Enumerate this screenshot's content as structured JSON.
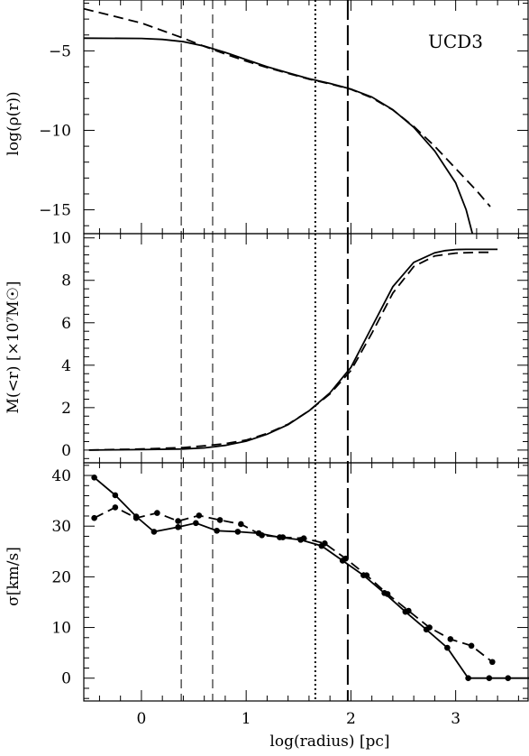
{
  "chart_data": [
    {
      "type": "line",
      "panel": "density",
      "annotation": "UCD3",
      "ylabel": "log(ρ(r))",
      "xlim": [
        -0.55,
        3.7
      ],
      "ylim": [
        -16.5,
        -1.8
      ],
      "yticks": [
        -15,
        -10,
        -5
      ],
      "ytick_labels": [
        "−15",
        "−10",
        "−5"
      ],
      "series": [
        {
          "style": "solid",
          "x": [
            -0.55,
            0,
            0.2,
            0.4,
            0.6,
            0.8,
            1.0,
            1.2,
            1.4,
            1.6,
            1.8,
            2.0,
            2.2,
            2.4,
            2.6,
            2.8,
            3.0,
            3.1,
            3.16
          ],
          "y": [
            -4.2,
            -4.22,
            -4.28,
            -4.42,
            -4.7,
            -5.1,
            -5.55,
            -6.0,
            -6.38,
            -6.75,
            -7.05,
            -7.4,
            -7.9,
            -8.7,
            -9.8,
            -11.3,
            -13.3,
            -15.0,
            -16.5
          ]
        },
        {
          "style": "dashed",
          "x": [
            -0.55,
            0,
            0.4,
            0.6,
            0.8,
            1.0,
            1.2,
            1.4,
            1.6,
            1.8,
            2.0,
            2.2,
            2.4,
            2.6,
            2.8,
            3.0,
            3.2,
            3.33
          ],
          "y": [
            -2.35,
            -3.25,
            -4.2,
            -4.72,
            -5.2,
            -5.65,
            -6.05,
            -6.42,
            -6.78,
            -7.08,
            -7.42,
            -7.95,
            -8.72,
            -9.75,
            -11.0,
            -12.4,
            -13.8,
            -14.8
          ]
        }
      ]
    },
    {
      "type": "line",
      "panel": "mass",
      "ylabel": "M(<r) [×10⁷M☉]",
      "xlim": [
        -0.55,
        3.7
      ],
      "ylim": [
        -0.6,
        10.2
      ],
      "yticks": [
        0,
        2,
        4,
        6,
        8,
        10
      ],
      "ytick_labels": [
        "0",
        "2",
        "4",
        "6",
        "8",
        "10"
      ],
      "series": [
        {
          "style": "solid",
          "x": [
            -0.5,
            0,
            0.4,
            0.6,
            0.8,
            1.0,
            1.2,
            1.4,
            1.6,
            1.8,
            2.0,
            2.2,
            2.4,
            2.6,
            2.8,
            2.9,
            3.0,
            3.1,
            3.4
          ],
          "y": [
            0,
            0.02,
            0.05,
            0.1,
            0.22,
            0.42,
            0.75,
            1.2,
            1.85,
            2.7,
            3.9,
            5.8,
            7.7,
            8.85,
            9.3,
            9.4,
            9.45,
            9.46,
            9.46
          ]
        },
        {
          "style": "dashed",
          "x": [
            -0.5,
            0,
            0.4,
            0.6,
            0.8,
            1.0,
            1.2,
            1.4,
            1.6,
            1.8,
            2.0,
            2.2,
            2.4,
            2.6,
            2.8,
            3.0,
            3.2,
            3.35
          ],
          "y": [
            0,
            0.05,
            0.12,
            0.2,
            0.3,
            0.47,
            0.78,
            1.22,
            1.85,
            2.65,
            3.75,
            5.5,
            7.4,
            8.65,
            9.15,
            9.28,
            9.32,
            9.32
          ]
        }
      ]
    },
    {
      "type": "line",
      "panel": "dispersion",
      "ylabel": "σ[km/s]",
      "xlabel": "log(radius) [pc]",
      "xlim": [
        -0.55,
        3.7
      ],
      "ylim": [
        -4.5,
        42.5
      ],
      "xticks": [
        0,
        1,
        2,
        3
      ],
      "xtick_labels": [
        "0",
        "1",
        "2",
        "3"
      ],
      "yticks": [
        0,
        10,
        20,
        30,
        40
      ],
      "ytick_labels": [
        "0",
        "10",
        "20",
        "30",
        "40"
      ],
      "series": [
        {
          "style": "solid",
          "markers": true,
          "x": [
            -0.45,
            -0.25,
            -0.05,
            0.12,
            0.35,
            0.52,
            0.72,
            0.92,
            1.12,
            1.32,
            1.52,
            1.72,
            1.92,
            2.12,
            2.32,
            2.52,
            2.72,
            2.92,
            3.12,
            3.32,
            3.5
          ],
          "y": [
            39.6,
            36.1,
            31.9,
            28.9,
            29.8,
            30.6,
            29.1,
            28.9,
            28.6,
            27.8,
            27.3,
            26.1,
            23.2,
            20.3,
            16.8,
            13.1,
            9.6,
            6.0,
            0,
            0,
            0
          ]
        },
        {
          "style": "dashed",
          "markers": true,
          "x": [
            -0.45,
            -0.25,
            -0.05,
            0.15,
            0.35,
            0.55,
            0.75,
            0.95,
            1.15,
            1.35,
            1.55,
            1.75,
            1.95,
            2.15,
            2.35,
            2.55,
            2.75,
            2.95,
            3.15,
            3.35
          ],
          "y": [
            31.6,
            33.7,
            31.6,
            32.6,
            31.0,
            32.1,
            31.2,
            30.4,
            28.2,
            27.8,
            27.6,
            26.6,
            23.6,
            20.3,
            16.6,
            13.3,
            10.0,
            7.7,
            6.4,
            3.2
          ]
        },
        {
          "style": "solid-flat",
          "x": [
            3.5,
            3.7
          ],
          "y": [
            0,
            0
          ]
        }
      ]
    }
  ],
  "vertical_lines": [
    {
      "x": 0.38,
      "style": "thin-dashed"
    },
    {
      "x": 0.68,
      "style": "thin-dashed"
    },
    {
      "x": 1.66,
      "style": "dotted"
    },
    {
      "x": 1.97,
      "style": "long-dashed"
    }
  ]
}
